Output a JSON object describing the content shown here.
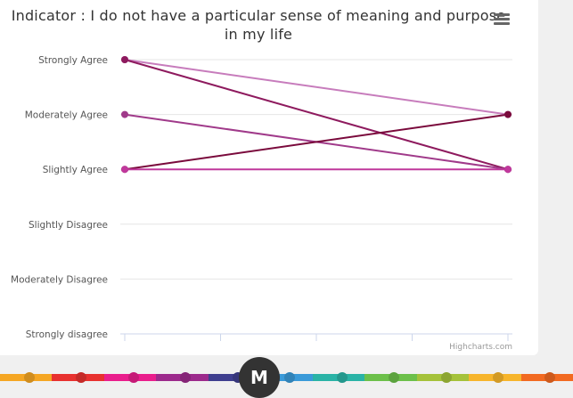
{
  "chart_data": {
    "type": "line",
    "title": "Indicator : I do not have a particular sense of meaning and purpose in my life",
    "xlabel": "",
    "ylabel": "",
    "categories": [
      "",
      ""
    ],
    "y_categories": [
      "Strongly disagree",
      "Moderately Disagree",
      "Slightly Disagree",
      "Slightly Agree",
      "Moderately Agree",
      "Strongly Agree"
    ],
    "ylim": [
      0,
      5
    ],
    "grid": true,
    "series": [
      {
        "values": [
          5,
          4
        ],
        "color": "#c77cbc"
      },
      {
        "values": [
          5,
          3
        ],
        "color": "#8e1a5e"
      },
      {
        "values": [
          4,
          3
        ],
        "color": "#a03a8a"
      },
      {
        "values": [
          3,
          4
        ],
        "color": "#7a0a3c"
      },
      {
        "values": [
          3,
          3
        ],
        "color": "#c0389c"
      }
    ]
  },
  "credits": "Highcharts.com",
  "logo_letter": "M",
  "footer_colors": [
    "#f5a623",
    "#e8312f",
    "#e91e8c",
    "#9c2a8c",
    "#3f3f8f",
    "#3a9ad9",
    "#2ab3a6",
    "#6cc04a",
    "#a5c23a",
    "#f7b52c",
    "#f26a21"
  ]
}
